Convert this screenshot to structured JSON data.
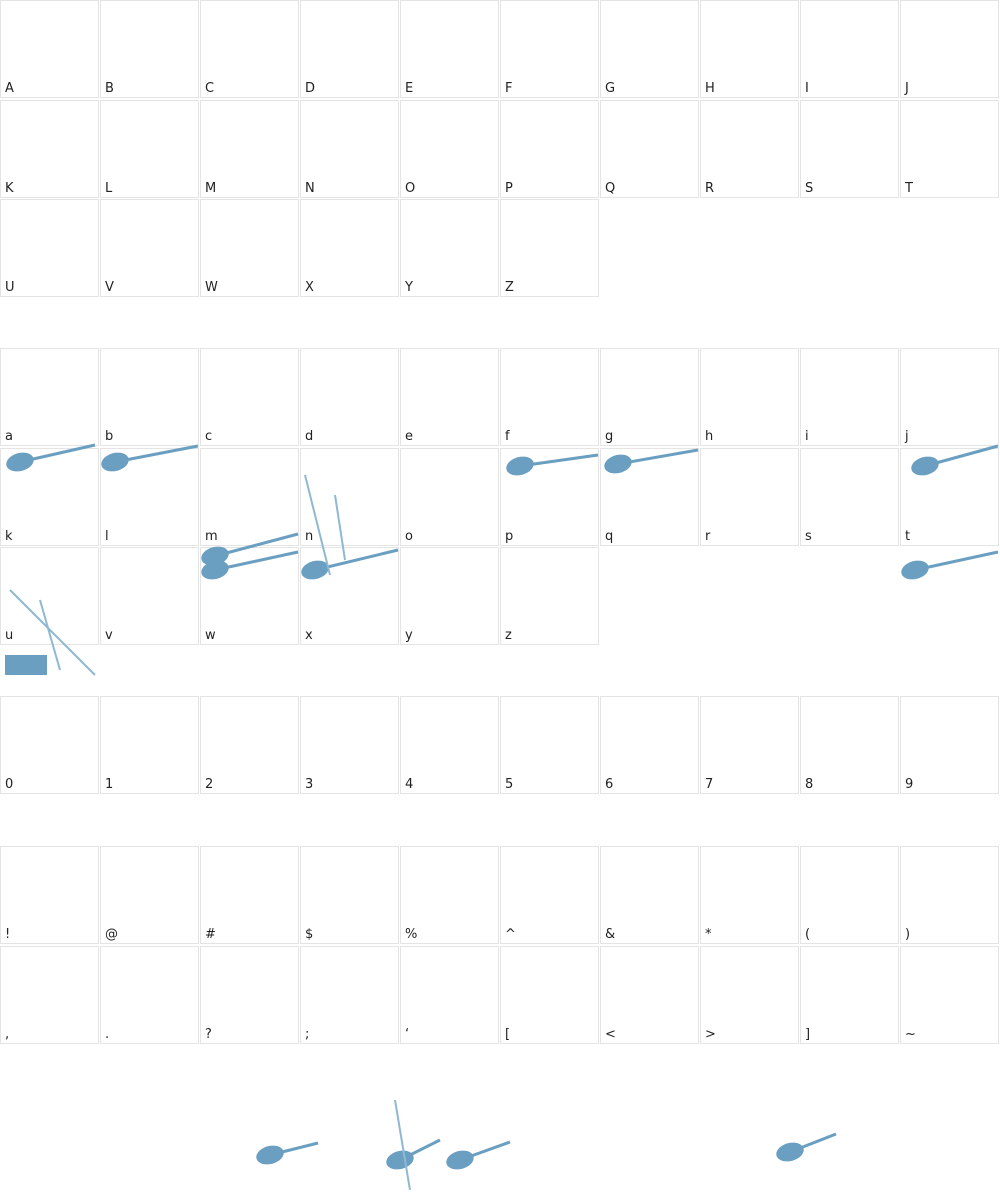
{
  "sections": [
    {
      "labels": [
        "A",
        "B",
        "C",
        "D",
        "E",
        "F",
        "G",
        "H",
        "I",
        "J",
        "K",
        "L",
        "M",
        "N",
        "O",
        "P",
        "Q",
        "R",
        "S",
        "T",
        "U",
        "V",
        "W",
        "X",
        "Y",
        "Z"
      ]
    },
    {
      "labels": [
        "a",
        "b",
        "c",
        "d",
        "e",
        "f",
        "g",
        "h",
        "i",
        "j",
        "k",
        "l",
        "m",
        "n",
        "o",
        "p",
        "q",
        "r",
        "s",
        "t",
        "u",
        "v",
        "w",
        "x",
        "y",
        "z"
      ]
    },
    {
      "labels": [
        "0",
        "1",
        "2",
        "3",
        "4",
        "5",
        "6",
        "7",
        "8",
        "9"
      ]
    },
    {
      "labels": [
        "!",
        "@",
        "#",
        "$",
        "%",
        "^",
        "&",
        "*",
        "(",
        ")",
        ",",
        ".",
        "?",
        ";",
        "‘",
        "[",
        "<",
        ">",
        "]",
        "~"
      ]
    }
  ]
}
